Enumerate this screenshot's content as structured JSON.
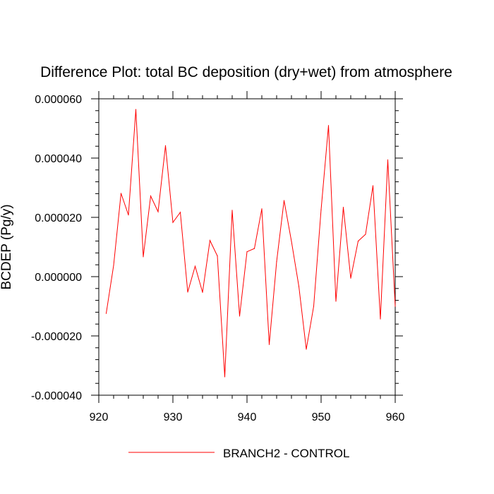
{
  "chart_data": {
    "type": "line",
    "title": "Difference Plot: total BC deposition (dry+wet) from atmosphere",
    "xlabel": "",
    "ylabel": "BCDEP  (Pg/y)",
    "xlim": [
      920,
      960
    ],
    "ylim": [
      -4e-05,
      6e-05
    ],
    "xticks": [
      920,
      930,
      940,
      950,
      960
    ],
    "xtick_labels": [
      "920",
      "930",
      "940",
      "950",
      "960"
    ],
    "yticks": [
      -4e-05,
      -2e-05,
      0.0,
      2e-05,
      4e-05,
      6e-05
    ],
    "ytick_labels": [
      "-0.000040",
      "-0.000020",
      "0.000000",
      "0.000020",
      "0.000040",
      "0.000060"
    ],
    "grid": false,
    "legend_position": "bottom-center",
    "series": [
      {
        "name": "BRANCH2 - CONTROL",
        "color": "#ff0000",
        "x": [
          921,
          922,
          923,
          924,
          925,
          926,
          927,
          928,
          929,
          930,
          931,
          932,
          933,
          934,
          935,
          936,
          937,
          938,
          939,
          940,
          941,
          942,
          943,
          944,
          945,
          946,
          947,
          948,
          949,
          950,
          951,
          952,
          953,
          954,
          955,
          956,
          957,
          958,
          959,
          960
        ],
        "y": [
          -1.24e-05,
          3.8e-06,
          2.81e-05,
          2.08e-05,
          5.64e-05,
          6.7e-06,
          2.72e-05,
          2.19e-05,
          4.42e-05,
          1.83e-05,
          2.17e-05,
          -5.2e-06,
          3.5e-06,
          -5.3e-06,
          1.22e-05,
          7e-06,
          -3.38e-05,
          2.24e-05,
          -1.33e-05,
          8.4e-06,
          9.5e-06,
          2.29e-05,
          -2.29e-05,
          5.1e-06,
          2.57e-05,
          1.19e-05,
          -3.3e-06,
          -2.45e-05,
          -1e-05,
          2.26e-05,
          5.1e-05,
          -8.3e-06,
          2.34e-05,
          -5e-07,
          1.2e-05,
          1.43e-05,
          3.07e-05,
          -1.43e-05,
          3.94e-05,
          -1e-05
        ]
      }
    ]
  }
}
